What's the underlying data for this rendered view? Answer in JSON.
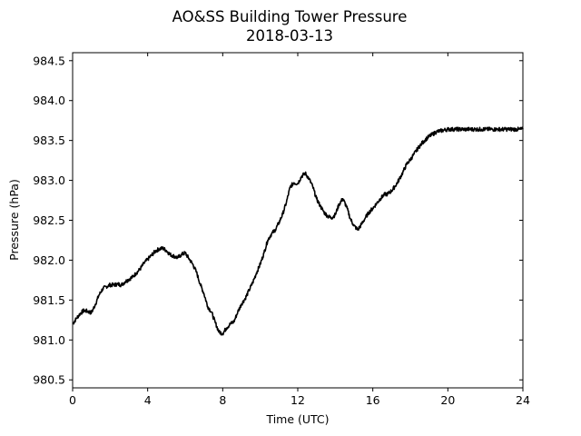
{
  "chart_data": {
    "type": "line",
    "title": "AO&SS Building Tower Pressure",
    "subtitle": "2018-03-13",
    "xlabel": "Time (UTC)",
    "ylabel": "Pressure (hPa)",
    "xlim": [
      0,
      24
    ],
    "ylim": [
      980.4,
      984.6
    ],
    "xticks": [
      0,
      4,
      8,
      12,
      16,
      20,
      24
    ],
    "yticks": [
      980.5,
      981.0,
      981.5,
      982.0,
      982.5,
      983.0,
      983.5,
      984.0,
      984.5
    ],
    "ytick_labels": [
      "980.5",
      "981.0",
      "981.5",
      "982.0",
      "982.5",
      "983.0",
      "983.5",
      "984.0",
      "984.5"
    ],
    "grid": false,
    "line_color": "#000000",
    "series": [
      {
        "x": [
          0.0,
          0.2,
          0.4,
          0.6,
          0.8,
          1.0,
          1.2,
          1.4,
          1.6,
          1.8,
          2.0,
          2.2,
          2.4,
          2.6,
          2.8,
          3.0,
          3.2,
          3.4,
          3.6,
          3.8,
          4.0,
          4.2,
          4.4,
          4.6,
          4.8,
          5.0,
          5.2,
          5.4,
          5.6,
          5.8,
          6.0,
          6.2,
          6.4,
          6.6,
          6.8,
          7.0,
          7.2,
          7.4,
          7.6,
          7.8,
          8.0,
          8.2,
          8.4,
          8.6,
          8.8,
          9.0,
          9.2,
          9.4,
          9.6,
          9.8,
          10.0,
          10.2,
          10.4,
          10.6,
          10.8,
          11.0,
          11.2,
          11.4,
          11.6,
          11.8,
          12.0,
          12.2,
          12.4,
          12.6,
          12.8,
          13.0,
          13.2,
          13.4,
          13.6,
          13.8,
          14.0,
          14.2,
          14.4,
          14.6,
          14.8,
          15.0,
          15.2,
          15.4,
          15.6,
          15.8,
          16.0,
          16.2,
          16.4,
          16.6,
          16.8,
          17.0,
          17.2,
          17.4,
          17.6,
          17.8,
          18.0,
          18.2,
          18.4,
          18.6,
          18.8,
          19.0,
          19.2,
          19.4,
          19.6,
          19.8,
          20.0,
          20.2,
          20.4,
          20.6,
          20.8,
          21.0,
          21.2,
          21.4,
          21.6,
          21.8,
          22.0,
          22.2,
          22.4,
          22.6,
          22.8,
          23.0,
          23.2,
          23.4,
          23.6,
          23.8,
          24.0
        ],
        "y": [
          981.2,
          981.27,
          981.33,
          981.37,
          981.36,
          981.34,
          981.44,
          981.56,
          981.64,
          981.67,
          981.69,
          981.69,
          981.7,
          981.69,
          981.73,
          981.76,
          981.79,
          981.84,
          981.89,
          981.96,
          982.01,
          982.06,
          982.11,
          982.14,
          982.15,
          982.12,
          982.07,
          982.05,
          982.03,
          982.07,
          982.09,
          982.02,
          981.95,
          981.85,
          981.7,
          981.58,
          981.42,
          981.35,
          981.22,
          981.1,
          981.08,
          981.15,
          981.2,
          981.23,
          981.35,
          981.45,
          981.52,
          981.62,
          981.72,
          981.84,
          981.95,
          982.09,
          982.25,
          982.33,
          982.38,
          982.47,
          982.58,
          982.73,
          982.92,
          982.97,
          982.96,
          983.05,
          983.09,
          983.02,
          982.92,
          982.77,
          982.68,
          982.6,
          982.55,
          982.53,
          982.57,
          982.7,
          982.77,
          982.67,
          982.52,
          982.43,
          982.38,
          982.45,
          982.53,
          982.6,
          982.65,
          982.71,
          982.77,
          982.82,
          982.83,
          982.87,
          982.93,
          983.01,
          983.1,
          983.2,
          983.26,
          983.33,
          983.4,
          983.46,
          983.51,
          983.55,
          983.58,
          983.61,
          983.62,
          983.63,
          983.64,
          983.64,
          983.64,
          983.64,
          983.64,
          983.64,
          983.64,
          983.64,
          983.64,
          983.64,
          983.64,
          983.64,
          983.64,
          983.64,
          983.64,
          983.64,
          983.64,
          983.64,
          983.64,
          983.64,
          983.64
        ]
      }
    ]
  }
}
